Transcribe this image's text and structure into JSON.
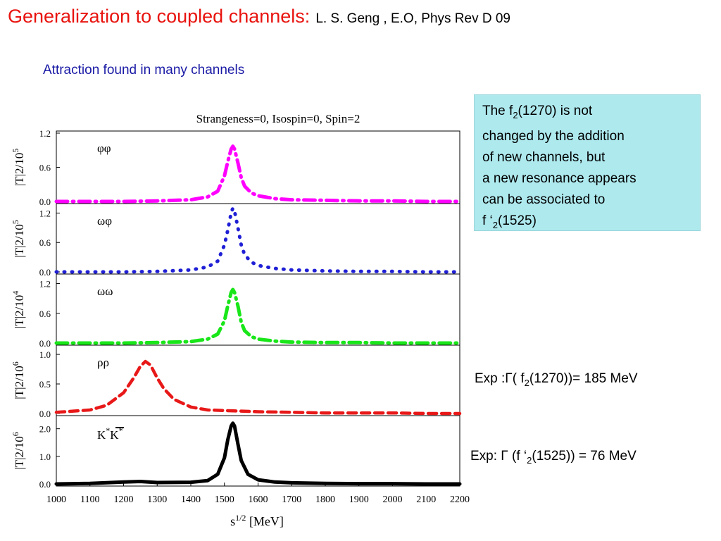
{
  "slide": {
    "title": "Generalization to coupled channels",
    "title_colon": ":",
    "reference": "L. S. Geng , E.O, Phys Rev D 09",
    "subtitle": "Attraction found in many channels"
  },
  "note": {
    "line1_a": "The f",
    "line1_sub": "2",
    "line1_b": "(1270) is not",
    "line2": "changed by the addition",
    "line3": "of new channels, but",
    "line4": "a new resonance appears",
    "line5": "can be associated to",
    "line6_a": " f ‘",
    "line6_sub": "2",
    "line6_b": "(1525)"
  },
  "exp1": {
    "a": "Exp :Γ( f",
    "sub": "2",
    "b": "(1270))= 185 MeV"
  },
  "exp2": {
    "a": "Exp: Γ (f ‘",
    "sub": "2",
    "b": "(1525)) = 76 MeV"
  },
  "chart_data": {
    "type": "line",
    "title": "Strangeness=0, Isospin=0, Spin=2",
    "xlabel": "s^1/2 [MeV]",
    "xlim": [
      1000,
      2200
    ],
    "xticks": [
      "1000",
      "1100",
      "1200",
      "1300",
      "1400",
      "1500",
      "1600",
      "1700",
      "1800",
      "1900",
      "2000",
      "2100",
      "2200"
    ],
    "panels": [
      {
        "label": "φφ",
        "ylabel": "|T|2/10",
        "yexp": "5",
        "ylim": [
          0,
          1.2
        ],
        "yticks": [
          "0.0",
          "0.6",
          "1.2"
        ],
        "color": "#ff00ff",
        "style": "dashdot",
        "series": {
          "x": [
            1000,
            1200,
            1300,
            1400,
            1450,
            1480,
            1500,
            1510,
            1520,
            1525,
            1530,
            1540,
            1550,
            1560,
            1580,
            1600,
            1650,
            1700,
            1800,
            1900,
            2000,
            2100,
            2200
          ],
          "y": [
            0.0,
            0.0,
            0.01,
            0.03,
            0.08,
            0.18,
            0.45,
            0.7,
            0.92,
            0.97,
            0.92,
            0.68,
            0.42,
            0.27,
            0.15,
            0.1,
            0.05,
            0.03,
            0.02,
            0.01,
            0.01,
            0.0,
            0.0
          ]
        }
      },
      {
        "label": "ωφ",
        "ylabel": "|T|2/10",
        "yexp": "5",
        "ylim": [
          0,
          1.35
        ],
        "yticks": [
          "0.0",
          "0.6",
          "1.2"
        ],
        "color": "#1f1fd6",
        "style": "dotted",
        "series": {
          "x": [
            1000,
            1200,
            1300,
            1400,
            1450,
            1480,
            1500,
            1510,
            1520,
            1525,
            1530,
            1540,
            1550,
            1560,
            1580,
            1600,
            1650,
            1700,
            1800,
            1900,
            2000,
            2100,
            2200
          ],
          "y": [
            0.0,
            0.0,
            0.01,
            0.04,
            0.1,
            0.22,
            0.55,
            0.85,
            1.2,
            1.3,
            1.24,
            0.9,
            0.55,
            0.35,
            0.2,
            0.13,
            0.07,
            0.04,
            0.02,
            0.01,
            0.01,
            0.0,
            0.0
          ]
        }
      },
      {
        "label": "ωω",
        "ylabel": "|T|2/10",
        "yexp": "4",
        "ylim": [
          0,
          1.35
        ],
        "yticks": [
          "0.0",
          "0.6",
          "1.2"
        ],
        "color": "#19e619",
        "style": "dashdot",
        "series": {
          "x": [
            1000,
            1200,
            1300,
            1400,
            1450,
            1480,
            1500,
            1510,
            1520,
            1525,
            1530,
            1540,
            1550,
            1560,
            1580,
            1600,
            1650,
            1700,
            1800,
            1900,
            2000,
            2100,
            2200
          ],
          "y": [
            0.0,
            0.0,
            0.01,
            0.03,
            0.08,
            0.18,
            0.45,
            0.75,
            1.02,
            1.08,
            1.02,
            0.75,
            0.42,
            0.25,
            0.13,
            0.08,
            0.04,
            0.02,
            0.01,
            0.01,
            0.0,
            0.0,
            0.0
          ]
        }
      },
      {
        "label": "ρρ",
        "ylabel": "|T|2/10",
        "yexp": "6",
        "ylim": [
          0,
          1.12
        ],
        "yticks": [
          "0.0",
          "0.5",
          "1.0"
        ],
        "color": "#e81818",
        "style": "dashed",
        "series": {
          "x": [
            1000,
            1100,
            1150,
            1200,
            1230,
            1250,
            1265,
            1280,
            1300,
            1320,
            1350,
            1400,
            1450,
            1500,
            1550,
            1600,
            1700,
            1800,
            1900,
            2000,
            2100,
            2200
          ],
          "y": [
            0.02,
            0.06,
            0.14,
            0.35,
            0.6,
            0.8,
            0.88,
            0.82,
            0.6,
            0.42,
            0.24,
            0.11,
            0.06,
            0.05,
            0.04,
            0.03,
            0.02,
            0.01,
            0.01,
            0.01,
            0.0,
            0.0
          ]
        }
      },
      {
        "label": "K",
        "label_sup1": "*",
        "label_mid": "K",
        "label_sup2": "*",
        "ylabel": "|T|2/10",
        "yexp": "6",
        "ylim": [
          0,
          2.4
        ],
        "yticks": [
          "0.0",
          "1.0",
          "2.0"
        ],
        "color": "#000000",
        "style": "solid",
        "series": {
          "x": [
            1000,
            1100,
            1200,
            1250,
            1300,
            1400,
            1450,
            1480,
            1500,
            1510,
            1520,
            1525,
            1530,
            1540,
            1550,
            1570,
            1600,
            1650,
            1700,
            1800,
            1900,
            2000,
            2100,
            2200
          ],
          "y": [
            0.0,
            0.02,
            0.07,
            0.09,
            0.05,
            0.06,
            0.12,
            0.35,
            0.95,
            1.6,
            2.1,
            2.2,
            2.1,
            1.45,
            0.85,
            0.35,
            0.15,
            0.07,
            0.04,
            0.02,
            0.01,
            0.01,
            0.0,
            0.0
          ]
        }
      }
    ]
  }
}
